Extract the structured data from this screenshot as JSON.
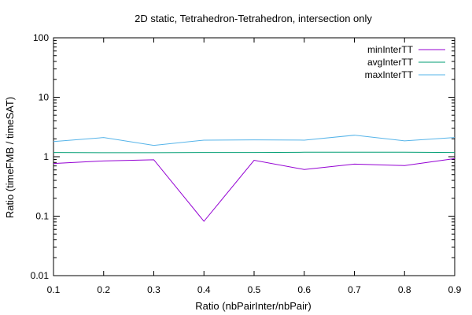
{
  "chart_data": {
    "type": "line",
    "title": "2D static, Tetrahedron-Tetrahedron, intersection only",
    "xlabel": "Ratio (nbPairInter/nbPair)",
    "ylabel": "Ratio (timeFMB / timeSAT)",
    "x": [
      0.1,
      0.2,
      0.3,
      0.4,
      0.5,
      0.6,
      0.7,
      0.8,
      0.9
    ],
    "xlim": [
      0.1,
      0.9
    ],
    "ylim": [
      0.01,
      100
    ],
    "yscale": "log",
    "xticks": [
      "0.1",
      "0.2",
      "0.3",
      "0.4",
      "0.5",
      "0.6",
      "0.7",
      "0.8",
      "0.9"
    ],
    "yticks": [
      {
        "value": 0.01,
        "label": "0.01"
      },
      {
        "value": 0.1,
        "label": "0.1"
      },
      {
        "value": 1,
        "label": "1"
      },
      {
        "value": 10,
        "label": "10"
      },
      {
        "value": 100,
        "label": "100"
      }
    ],
    "grid": false,
    "legend_position": "top-right",
    "series": [
      {
        "name": "minInterTT",
        "color": "#9400d3",
        "values": [
          0.77,
          0.85,
          0.89,
          0.082,
          0.87,
          0.61,
          0.75,
          0.71,
          0.93
        ]
      },
      {
        "name": "avgInterTT",
        "color": "#009e73",
        "values": [
          1.18,
          1.17,
          1.17,
          1.18,
          1.18,
          1.19,
          1.19,
          1.19,
          1.18
        ]
      },
      {
        "name": "maxInterTT",
        "color": "#56b4e9",
        "values": [
          1.8,
          2.1,
          1.55,
          1.9,
          1.92,
          1.9,
          2.3,
          1.85,
          2.1
        ]
      }
    ]
  }
}
